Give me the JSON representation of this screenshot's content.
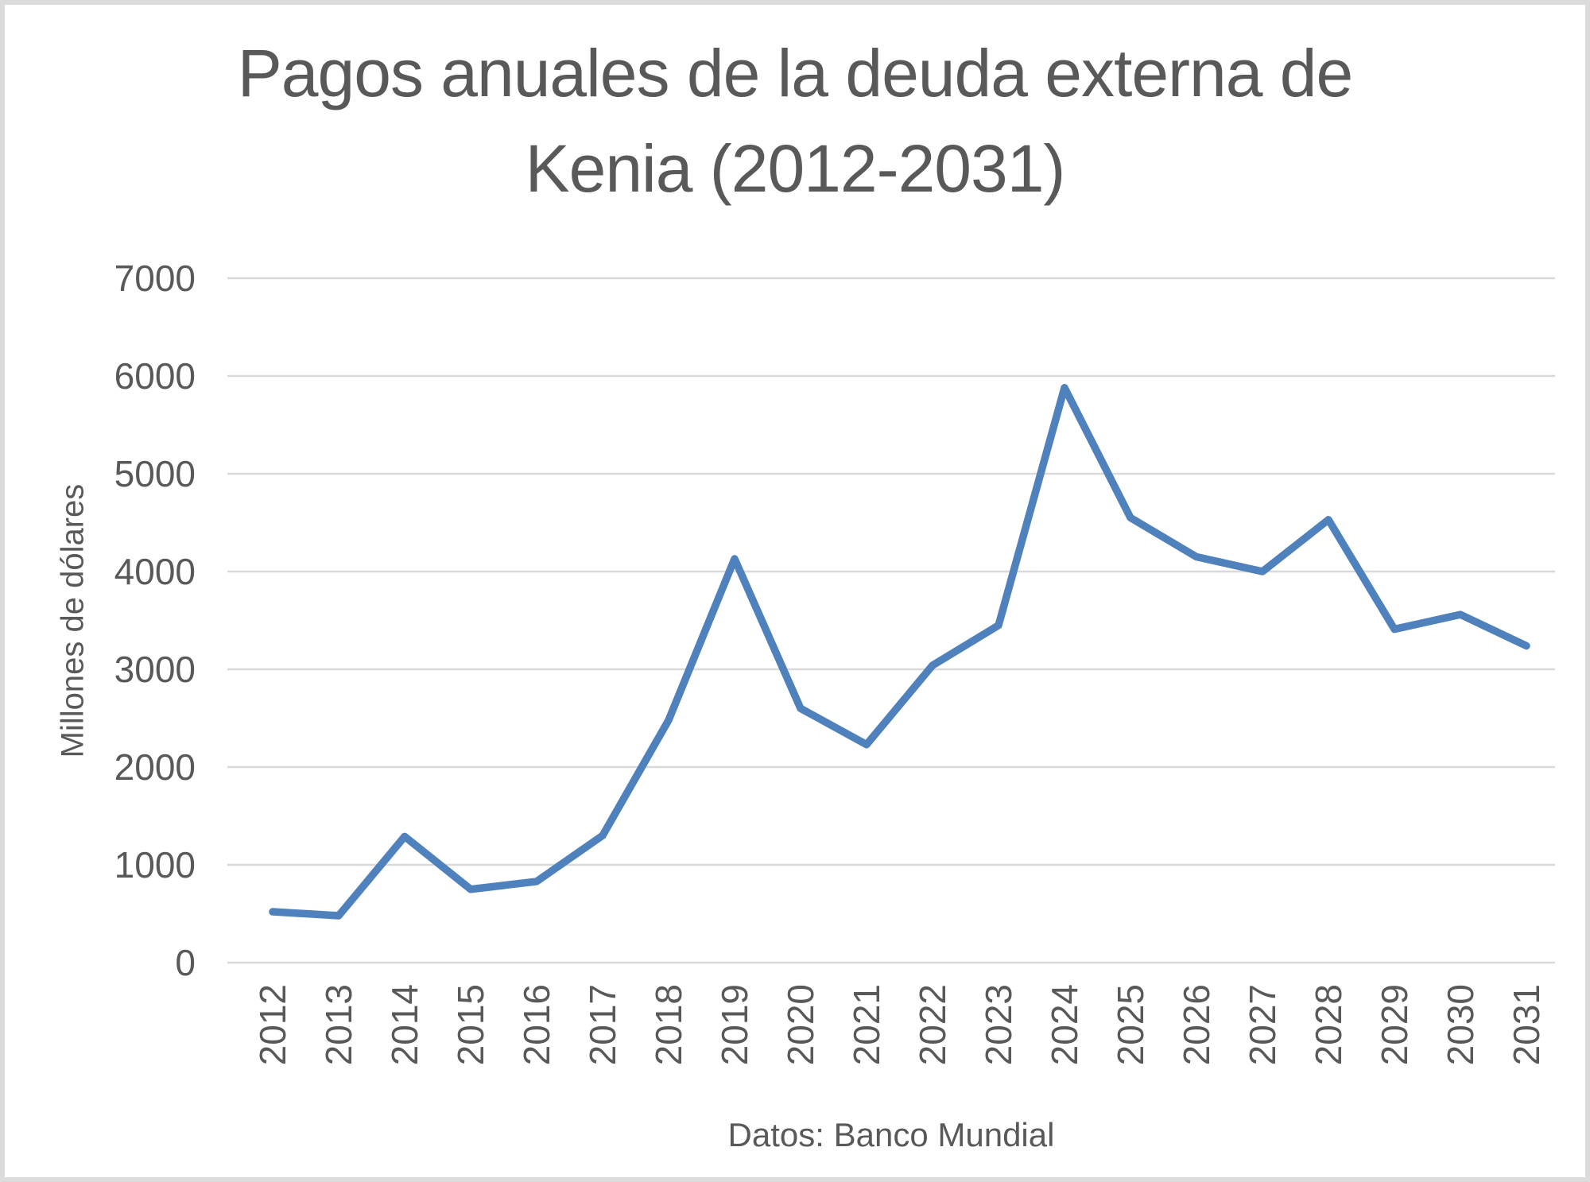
{
  "title": {
    "line1": "Pagos anuales de la deuda externa de",
    "line2": "Kenia (2012-2031)"
  },
  "caption": "Datos: Banco Mundial",
  "chart_data": {
    "type": "line",
    "title": "Pagos anuales de la deuda externa de Kenia (2012-2031)",
    "xlabel": "",
    "ylabel": "Millones de dólares",
    "source": "Datos: Banco Mundial",
    "categories": [
      "2012",
      "2013",
      "2014",
      "2015",
      "2016",
      "2017",
      "2018",
      "2019",
      "2020",
      "2021",
      "2022",
      "2023",
      "2024",
      "2025",
      "2026",
      "2027",
      "2028",
      "2029",
      "2030",
      "2031"
    ],
    "values": [
      520,
      480,
      1290,
      750,
      830,
      1300,
      2480,
      4130,
      2600,
      2230,
      3040,
      3450,
      5880,
      4550,
      4150,
      4000,
      4530,
      3410,
      3560,
      3240
    ],
    "ylim": [
      0,
      7000
    ],
    "ytick_step": 1000,
    "grid": "horizontal",
    "legend": "none",
    "line_color": "#4F81BD",
    "text_color": "#595959",
    "grid_color": "#D9D9D9"
  }
}
